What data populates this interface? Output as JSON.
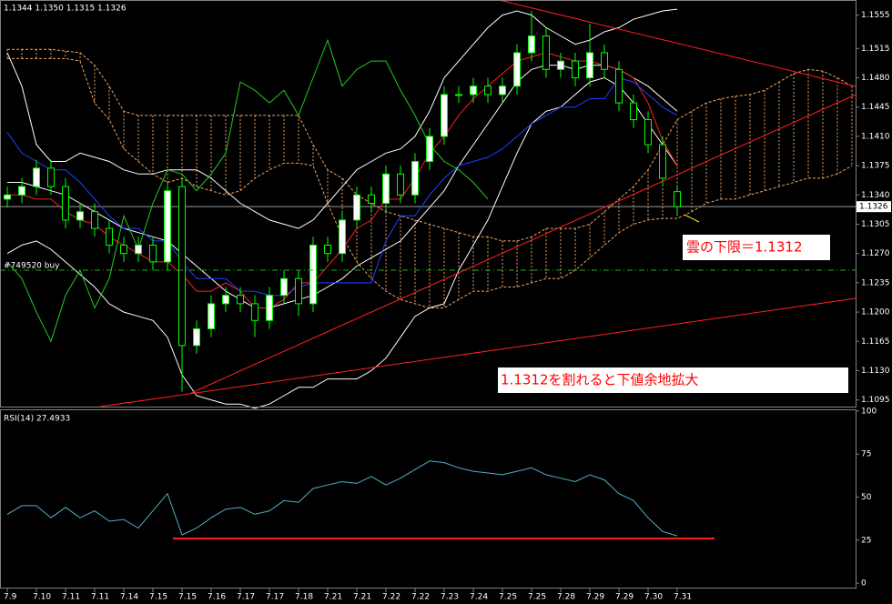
{
  "chart_data": [
    {
      "type": "candlestick",
      "header": "1.1344 1.1350 1.1315 1.1326",
      "xlim": [
        -0.5,
        58.25
      ],
      "ylim": [
        1.1087,
        1.1573
      ],
      "yticks": [
        1.1555,
        1.1515,
        {
          "value": 1.148,
          "label": "1.1480"
        },
        1.1445,
        {
          "value": 1.141,
          "label": "1.1410"
        },
        1.1375,
        {
          "value": 1.134,
          "label": "1.1340"
        },
        1.1305,
        {
          "value": 1.127,
          "label": "1.1270"
        },
        1.1235,
        {
          "value": 1.12,
          "label": "1.1200"
        },
        1.1165,
        {
          "value": 1.113,
          "label": "1.1130"
        },
        1.1095
      ],
      "candles": {
        "up_color": "#ffffff",
        "down_color": "#000000",
        "edge_color": "#00ff00",
        "open": [
          1.1335,
          1.134,
          1.135,
          1.1372,
          1.135,
          1.131,
          1.132,
          1.13,
          1.128,
          1.127,
          1.128,
          1.126,
          1.135,
          1.116,
          1.118,
          1.121,
          1.122,
          1.121,
          1.119,
          1.122,
          1.124,
          1.121,
          1.128,
          1.127,
          1.131,
          1.134,
          1.133,
          1.1365,
          1.134,
          1.138,
          1.141,
          1.146,
          1.146,
          1.147,
          1.146,
          1.147,
          1.151,
          1.153,
          1.149,
          1.15,
          1.148,
          1.151,
          1.149,
          1.145,
          1.143,
          1.14,
          1.1344
        ],
        "high": [
          1.135,
          1.136,
          1.1382,
          1.1382,
          1.136,
          1.133,
          1.133,
          1.131,
          1.129,
          1.129,
          1.129,
          1.1355,
          1.136,
          1.119,
          1.122,
          1.123,
          1.123,
          1.122,
          1.123,
          1.125,
          1.125,
          1.129,
          1.129,
          1.132,
          1.135,
          1.135,
          1.1375,
          1.1375,
          1.139,
          1.142,
          1.147,
          1.147,
          1.148,
          1.148,
          1.148,
          1.152,
          1.156,
          1.154,
          1.151,
          1.151,
          1.1545,
          1.152,
          1.15,
          1.146,
          1.144,
          1.141,
          1.135
        ],
        "low": [
          1.1325,
          1.133,
          1.134,
          1.134,
          1.13,
          1.13,
          1.129,
          1.127,
          1.126,
          1.126,
          1.125,
          1.125,
          1.1105,
          1.115,
          1.117,
          1.12,
          1.12,
          1.117,
          1.118,
          1.121,
          1.1195,
          1.12,
          1.126,
          1.126,
          1.13,
          1.132,
          1.132,
          1.133,
          1.133,
          1.137,
          1.14,
          1.145,
          1.145,
          1.145,
          1.145,
          1.146,
          1.15,
          1.148,
          1.148,
          1.147,
          1.147,
          1.148,
          1.144,
          1.142,
          1.139,
          1.135,
          1.1315
        ],
        "close": [
          1.134,
          1.135,
          1.1372,
          1.135,
          1.131,
          1.132,
          1.13,
          1.128,
          1.127,
          1.128,
          1.126,
          1.1345,
          1.116,
          1.118,
          1.121,
          1.122,
          1.121,
          1.119,
          1.122,
          1.124,
          1.121,
          1.128,
          1.127,
          1.131,
          1.134,
          1.133,
          1.1365,
          1.134,
          1.138,
          1.141,
          1.146,
          1.146,
          1.147,
          1.146,
          1.147,
          1.151,
          1.153,
          1.149,
          1.15,
          1.148,
          1.151,
          1.149,
          1.145,
          1.143,
          1.14,
          1.136,
          1.1326
        ]
      },
      "cloud": {
        "color": "#f4a460",
        "upper": [
          1.1514,
          1.1514,
          1.1514,
          1.1514,
          1.1512,
          1.151,
          1.1495,
          1.147,
          1.144,
          1.1435,
          1.1435,
          1.1435,
          1.1435,
          1.1435,
          1.1435,
          1.1435,
          1.1435,
          1.1435,
          1.1435,
          1.1435,
          1.1435,
          1.14,
          1.137,
          1.136,
          1.134,
          1.133,
          1.132,
          1.1315,
          1.131,
          1.1305,
          1.13,
          1.1295,
          1.129,
          1.129,
          1.1285,
          1.1285,
          1.129,
          1.13,
          1.13,
          1.13,
          1.1305,
          1.132,
          1.1335,
          1.135,
          1.137,
          1.14,
          1.143,
          1.144,
          1.145,
          1.1455,
          1.1458,
          1.146,
          1.1465,
          1.1475,
          1.1485,
          1.149,
          1.1488,
          1.148,
          1.147
        ],
        "lower": [
          1.1503,
          1.1503,
          1.1503,
          1.1503,
          1.1503,
          1.15,
          1.145,
          1.143,
          1.1395,
          1.138,
          1.1365,
          1.1355,
          1.136,
          1.135,
          1.1345,
          1.134,
          1.1345,
          1.136,
          1.137,
          1.1378,
          1.1378,
          1.1375,
          1.133,
          1.129,
          1.126,
          1.124,
          1.1225,
          1.1215,
          1.121,
          1.1205,
          1.1205,
          1.1215,
          1.1225,
          1.1225,
          1.123,
          1.123,
          1.1235,
          1.124,
          1.124,
          1.125,
          1.1265,
          1.128,
          1.1295,
          1.1305,
          1.131,
          1.1312,
          1.1312,
          1.132,
          1.133,
          1.1335,
          1.1335,
          1.134,
          1.1345,
          1.135,
          1.1355,
          1.136,
          1.136,
          1.1365,
          1.1375
        ]
      },
      "lines": [
        {
          "color": "#ffffff",
          "values": [
            1.151,
            1.147,
            1.14,
            1.138,
            1.138,
            1.139,
            1.1385,
            1.138,
            1.137,
            1.1365,
            1.1365,
            1.137,
            1.137,
            1.137,
            1.136,
            1.1345,
            1.133,
            1.132,
            1.131,
            1.1305,
            1.13,
            1.131,
            1.133,
            1.135,
            1.137,
            1.138,
            1.139,
            1.1395,
            1.141,
            1.144,
            1.148,
            1.15,
            1.152,
            1.154,
            1.1555,
            1.156,
            1.1555,
            1.154,
            1.153,
            1.152,
            1.1525,
            1.1535,
            1.154,
            1.155,
            1.1555,
            1.156,
            1.1562
          ]
        },
        {
          "color": "#ffffff",
          "values": [
            1.1355,
            1.1355,
            1.135,
            1.1345,
            1.134,
            1.133,
            1.132,
            1.131,
            1.13,
            1.1295,
            1.129,
            1.1285,
            1.127,
            1.1255,
            1.124,
            1.1225,
            1.1215,
            1.1205,
            1.1205,
            1.121,
            1.1215,
            1.122,
            1.123,
            1.124,
            1.1255,
            1.1265,
            1.1275,
            1.1285,
            1.1305,
            1.1325,
            1.1345,
            1.1375,
            1.14,
            1.1425,
            1.145,
            1.1475,
            1.149,
            1.1495,
            1.1495,
            1.149,
            1.1495,
            1.1495,
            1.149,
            1.148,
            1.147,
            1.1455,
            1.144
          ]
        },
        {
          "color": "#ffffff",
          "values": [
            1.127,
            1.128,
            1.1285,
            1.1275,
            1.126,
            1.1245,
            1.123,
            1.121,
            1.12,
            1.1195,
            1.119,
            1.117,
            1.1125,
            1.11,
            1.1095,
            1.109,
            1.109,
            1.1085,
            1.109,
            1.11,
            1.111,
            1.111,
            1.112,
            1.112,
            1.112,
            1.113,
            1.1145,
            1.117,
            1.1195,
            1.1205,
            1.121,
            1.125,
            1.128,
            1.131,
            1.135,
            1.139,
            1.1425,
            1.144,
            1.1445,
            1.146,
            1.1475,
            1.148,
            1.147,
            1.145,
            1.1425,
            1.14,
            1.1375
          ]
        },
        {
          "color": "#ff2020",
          "values": [
            1.134,
            1.134,
            1.1335,
            1.1335,
            1.132,
            1.131,
            1.1305,
            1.129,
            1.128,
            1.127,
            1.126,
            1.126,
            1.1245,
            1.1225,
            1.1225,
            1.1235,
            1.1225,
            1.1205,
            1.1205,
            1.1215,
            1.1235,
            1.1235,
            1.1255,
            1.1275,
            1.13,
            1.131,
            1.1335,
            1.1335,
            1.136,
            1.139,
            1.141,
            1.1435,
            1.1455,
            1.147,
            1.1485,
            1.15,
            1.1505,
            1.151,
            1.1505,
            1.15,
            1.15,
            1.1495,
            1.149,
            1.148,
            1.145,
            1.1405,
            1.1375
          ]
        },
        {
          "color": "#2040ff",
          "values": [
            1.1415,
            1.139,
            1.138,
            1.137,
            1.137,
            1.1355,
            1.1335,
            1.1315,
            1.13,
            1.13,
            1.1285,
            1.1285,
            1.126,
            1.124,
            1.124,
            1.124,
            1.1225,
            1.1225,
            1.122,
            1.122,
            1.123,
            1.1235,
            1.1235,
            1.1235,
            1.1235,
            1.1235,
            1.1285,
            1.1315,
            1.1315,
            1.134,
            1.136,
            1.1375,
            1.138,
            1.1385,
            1.1395,
            1.141,
            1.1425,
            1.1435,
            1.1445,
            1.1445,
            1.1455,
            1.1455,
            1.148,
            1.1475,
            1.146,
            1.1445,
            1.1435
          ]
        },
        {
          "color": "#22cc22",
          "values": [
            1.126,
            1.124,
            1.12,
            1.1165,
            1.122,
            1.125,
            1.1205,
            1.124,
            1.1315,
            1.1275,
            1.133,
            1.137,
            1.1365,
            1.1345,
            1.1365,
            1.139,
            1.1475,
            1.1465,
            1.145,
            1.1465,
            1.1435,
            1.148,
            1.1525,
            1.147,
            1.149,
            1.15,
            1.15,
            1.1465,
            1.1435,
            1.14,
            1.138,
            1.137,
            1.1355,
            1.1335
          ]
        }
      ],
      "current_price": 1.1326,
      "order_label": "#749520 buy",
      "annotations": [
        "雲の下限＝1.1312",
        "1.1312を割れると下値余地拡大"
      ]
    },
    {
      "type": "line",
      "label": "RSI(14) 27.4933",
      "xlim": [
        -0.5,
        58.25
      ],
      "ylim": [
        -10,
        101
      ],
      "yticks": [
        100,
        75,
        50,
        25,
        0
      ],
      "xticks": [
        {
          "value": 0,
          "label": "7.9"
        },
        {
          "value": 2,
          "label": "7.10"
        },
        {
          "value": 4,
          "label": "7.11"
        },
        {
          "value": 6,
          "label": "7.11"
        },
        {
          "value": 8,
          "label": "7.14"
        },
        {
          "value": 10,
          "label": "7.15"
        },
        {
          "value": 12,
          "label": "7.15"
        },
        {
          "value": 14,
          "label": "7.16"
        },
        {
          "value": 16,
          "label": "7.17"
        },
        {
          "value": 18,
          "label": "7.17"
        },
        {
          "value": 20,
          "label": "7.18"
        },
        {
          "value": 22,
          "label": "7.21"
        },
        {
          "value": 24,
          "label": "7.21"
        },
        {
          "value": 26,
          "label": "7.22"
        },
        {
          "value": 28,
          "label": "7.22"
        },
        {
          "value": 30,
          "label": "7.23"
        },
        {
          "value": 32,
          "label": "7.24"
        },
        {
          "value": 34,
          "label": "7.25"
        },
        {
          "value": 36,
          "label": "7.25"
        },
        {
          "value": 38,
          "label": "7.28"
        },
        {
          "value": 40,
          "label": "7.29"
        },
        {
          "value": 42,
          "label": "7.29"
        },
        {
          "value": 44,
          "label": "7.30"
        },
        {
          "value": 46,
          "label": "7.31"
        }
      ],
      "series": [
        {
          "color": "#4fb0c8",
          "values": [
            40,
            45,
            45,
            38,
            44,
            38,
            42,
            36,
            37,
            32,
            42,
            52,
            28,
            32,
            38,
            43,
            44,
            40,
            42,
            48,
            47,
            55,
            57,
            59,
            58,
            62,
            57,
            61,
            66,
            71,
            70,
            67,
            65,
            64,
            63,
            65,
            67,
            63,
            61,
            59,
            63,
            60,
            52,
            48,
            38,
            30,
            27.4933
          ]
        }
      ]
    }
  ]
}
